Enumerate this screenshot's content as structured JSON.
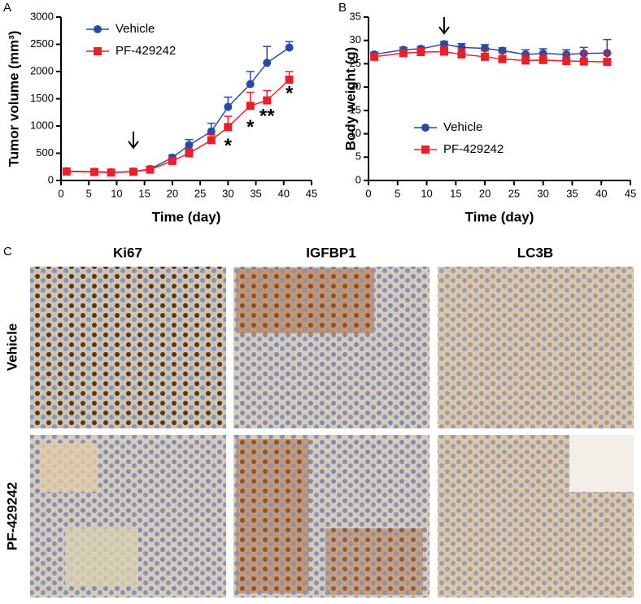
{
  "chart_data": [
    {
      "type": "line",
      "panel_label": "A",
      "xlabel": "Time (day)",
      "ylabel": "Tumor volume (mm³)",
      "x": [
        1,
        6,
        9,
        13,
        16,
        20,
        23,
        27,
        30,
        34,
        37,
        41
      ],
      "series": [
        {
          "name": "Vehicle",
          "color": "#2a4aa8",
          "marker": "circle",
          "values": [
            170,
            160,
            150,
            165,
            210,
            420,
            650,
            900,
            1350,
            1770,
            2160,
            2440
          ],
          "errors": [
            20,
            20,
            20,
            20,
            30,
            50,
            100,
            150,
            180,
            230,
            300,
            110
          ]
        },
        {
          "name": "PF-429242",
          "color": "#e8202a",
          "marker": "square",
          "values": [
            165,
            155,
            145,
            160,
            200,
            360,
            500,
            740,
            980,
            1370,
            1470,
            1850
          ],
          "errors": [
            20,
            20,
            20,
            20,
            30,
            40,
            80,
            100,
            200,
            250,
            180,
            150
          ]
        }
      ],
      "xlim": [
        0,
        45
      ],
      "xticks": [
        0,
        5,
        10,
        15,
        20,
        25,
        30,
        35,
        40,
        45
      ],
      "ylim": [
        0,
        3000
      ],
      "yticks": [
        0,
        500,
        1000,
        1500,
        2000,
        2500,
        3000
      ],
      "legend": "upper left",
      "arrow": {
        "x": 13,
        "y": 600
      },
      "annotations": [
        {
          "text": "*",
          "x": 30,
          "y": 620
        },
        {
          "text": "*",
          "x": 34,
          "y": 960
        },
        {
          "text": "**",
          "x": 37,
          "y": 1160
        },
        {
          "text": "*",
          "x": 41,
          "y": 1580
        }
      ]
    },
    {
      "type": "line",
      "panel_label": "B",
      "xlabel": "Time (day)",
      "ylabel": "Body weight (g)",
      "x": [
        1,
        6,
        9,
        13,
        16,
        20,
        23,
        27,
        30,
        34,
        37,
        41
      ],
      "series": [
        {
          "name": "Vehicle",
          "color": "#2a4aa8",
          "marker": "circle",
          "values": [
            27,
            28,
            28.2,
            29.2,
            28.5,
            28.3,
            27.8,
            27,
            27.2,
            27,
            27.2,
            27.3
          ],
          "errors": [
            0.5,
            0.5,
            0.5,
            0.6,
            0.8,
            0.8,
            0.6,
            1,
            1,
            1,
            1.3,
            2.9
          ]
        },
        {
          "name": "PF-429242",
          "color": "#e8202a",
          "marker": "square",
          "values": [
            26.5,
            27.3,
            27.5,
            27.6,
            27,
            26.5,
            26,
            25.7,
            25.8,
            25.6,
            25.5,
            25.4
          ],
          "errors": [
            0.5,
            0.5,
            0.5,
            1,
            1.2,
            1.3,
            1.3,
            1.3,
            1.3,
            1.5,
            2,
            2
          ]
        }
      ],
      "xlim": [
        0,
        45
      ],
      "xticks": [
        0,
        5,
        10,
        15,
        20,
        25,
        30,
        35,
        40,
        45
      ],
      "ylim": [
        0,
        35
      ],
      "yticks": [
        0,
        5,
        10,
        15,
        20,
        25,
        30,
        35
      ],
      "legend": "lower center",
      "arrow": {
        "x": 13,
        "y": 31.5
      }
    }
  ],
  "histology": {
    "panel_label": "C",
    "columns": [
      "Ki67",
      "IGFBP1",
      "LC3B"
    ],
    "rows": [
      "Vehicle",
      "PF-429242"
    ]
  }
}
